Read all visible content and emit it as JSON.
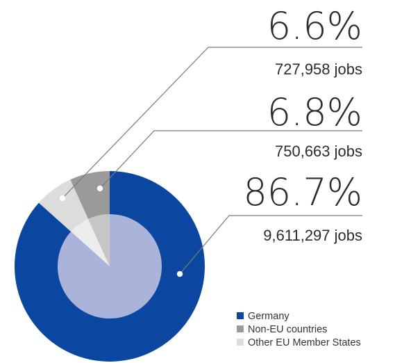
{
  "colors": {
    "germany_outer": "#0b47a1",
    "germany_inner": "#aab3d9",
    "non_eu_outer": "#9a9a9a",
    "non_eu_inner": "#c6c6c6",
    "other_eu_outer": "#dcdcdc",
    "other_eu_inner": "#ececec",
    "leader_line": "#7a7a7a",
    "text": "#2b2b2b"
  },
  "chart_data": {
    "type": "pie",
    "start_angle": "top, clockwise",
    "legend_position": "bottom-right",
    "slices": [
      {
        "name": "Germany",
        "percent": 86.7,
        "percent_label": "86.7%",
        "jobs": "9,611,297 jobs"
      },
      {
        "name": "Other EU Member States",
        "percent": 6.6,
        "percent_label": "6.6%",
        "jobs": "727,958 jobs"
      },
      {
        "name": "Non-EU countries",
        "percent": 6.8,
        "percent_label": "6.8%",
        "jobs": "750,663 jobs"
      }
    ],
    "legend": [
      "Germany",
      "Non-EU countries",
      "Other EU Member States"
    ]
  }
}
